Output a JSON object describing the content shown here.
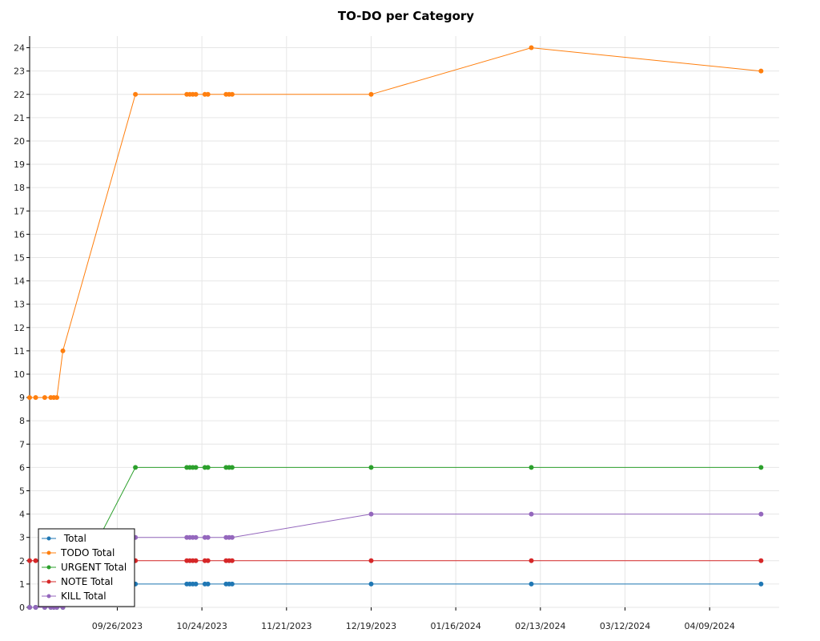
{
  "chart_data": {
    "type": "line",
    "title": "TO-DO per Category",
    "xlabel": "",
    "ylabel": "",
    "ylim": [
      0,
      24.5
    ],
    "xlim": [
      "2023-08-28",
      "2024-05-02"
    ],
    "x_tick_labels": [
      "09/26/2023",
      "10/24/2023",
      "11/21/2023",
      "12/19/2023",
      "01/16/2024",
      "02/13/2024",
      "03/12/2024",
      "04/09/2024"
    ],
    "y_ticks": [
      0,
      1,
      2,
      3,
      4,
      5,
      6,
      7,
      8,
      9,
      10,
      11,
      12,
      13,
      14,
      15,
      16,
      17,
      18,
      19,
      20,
      21,
      22,
      23,
      24
    ],
    "grid": true,
    "legend_position": "bottom-left",
    "x": [
      "2023-08-28",
      "2023-08-30",
      "2023-09-02",
      "2023-09-04",
      "2023-09-05",
      "2023-09-06",
      "2023-09-08",
      "2023-10-02",
      "2023-10-19",
      "2023-10-20",
      "2023-10-21",
      "2023-10-22",
      "2023-10-25",
      "2023-10-26",
      "2023-11-01",
      "2023-11-02",
      "2023-11-03",
      "2023-12-19",
      "2024-02-10",
      "2024-04-26"
    ],
    "series": [
      {
        "name": " Total",
        "color": "#1f77b4",
        "values": [
          0,
          0,
          0,
          0,
          0,
          0,
          0,
          1,
          1,
          1,
          1,
          1,
          1,
          1,
          1,
          1,
          1,
          1,
          1,
          1
        ]
      },
      {
        "name": "TODO Total",
        "color": "#ff7f0e",
        "values": [
          9,
          9,
          9,
          9,
          9,
          9,
          11,
          22,
          22,
          22,
          22,
          22,
          22,
          22,
          22,
          22,
          22,
          22,
          24,
          23
        ]
      },
      {
        "name": "URGENT Total",
        "color": "#2ca02c",
        "values": [
          0,
          0,
          0,
          0,
          0,
          0,
          0,
          6,
          6,
          6,
          6,
          6,
          6,
          6,
          6,
          6,
          6,
          6,
          6,
          6
        ]
      },
      {
        "name": "NOTE Total",
        "color": "#d62728",
        "values": [
          2,
          2,
          2,
          2,
          2,
          2,
          2,
          2,
          2,
          2,
          2,
          2,
          2,
          2,
          2,
          2,
          2,
          2,
          2,
          2
        ]
      },
      {
        "name": "KILL Total",
        "color": "#9467bd",
        "values": [
          0,
          0,
          0,
          0,
          0,
          0,
          0,
          3,
          3,
          3,
          3,
          3,
          3,
          3,
          3,
          3,
          3,
          4,
          4,
          4
        ]
      }
    ]
  }
}
